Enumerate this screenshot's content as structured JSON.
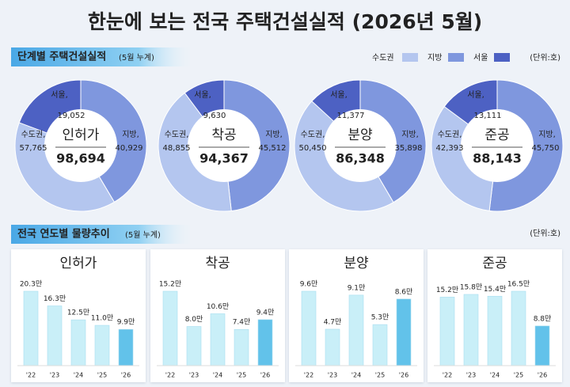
{
  "header": {
    "title": "한눈에 보는 전국 주택건설실적 (2026년 5월)"
  },
  "section1": {
    "title": "단계별 주택건설실적",
    "note": "(5월 누계)",
    "legend": {
      "items": [
        "수도권",
        "지방",
        "서울"
      ],
      "colors": [
        "#b4c6ef",
        "#7f97de",
        "#4d61c3"
      ],
      "unit": "(단위:호)"
    }
  },
  "section2": {
    "title": "전국 연도별 물량추이",
    "note": "(5월 누계)",
    "unit": "(단위:호)"
  },
  "chart_data": [
    {
      "type": "donut",
      "center_label": "인허가",
      "total": {
        "value": 98694,
        "label": "98,694"
      },
      "labels": [
        "수도권,",
        "지방,",
        "서울,"
      ],
      "values": [
        57765,
        40929,
        19052
      ],
      "value_labels": [
        "57,765",
        "40,929",
        "19,052"
      ]
    },
    {
      "type": "donut",
      "center_label": "착공",
      "total": {
        "value": 94367,
        "label": "94,367"
      },
      "labels": [
        "수도권,",
        "지방,",
        "서울,"
      ],
      "values": [
        48855,
        45512,
        9630
      ],
      "value_labels": [
        "48,855",
        "45,512",
        "9,630"
      ]
    },
    {
      "type": "donut",
      "center_label": "분양",
      "total": {
        "value": 86348,
        "label": "86,348"
      },
      "labels": [
        "수도권,",
        "지방,",
        "서울,"
      ],
      "values": [
        50450,
        35898,
        11377
      ],
      "value_labels": [
        "50,450",
        "35,898",
        "11,377"
      ]
    },
    {
      "type": "donut",
      "center_label": "준공",
      "total": {
        "value": 88143,
        "label": "88,143"
      },
      "labels": [
        "수도권,",
        "지방,",
        "서울,"
      ],
      "values": [
        42393,
        45750,
        13111
      ],
      "value_labels": [
        "42,393",
        "45,750",
        "13,111"
      ]
    },
    {
      "type": "bar",
      "title": "인허가",
      "categories": [
        "'22",
        "'23",
        "'24",
        "'25",
        "'26"
      ],
      "values": [
        20.3,
        16.3,
        12.5,
        11.0,
        9.9
      ],
      "value_labels": [
        "20.3만",
        "16.3만",
        "12.5만",
        "11.0만",
        "9.9만"
      ],
      "colors": [
        "#c9eff8",
        "#c9eff8",
        "#c9eff8",
        "#c9eff8",
        "#62c2ea"
      ]
    },
    {
      "type": "bar",
      "title": "착공",
      "categories": [
        "'22",
        "'23",
        "'24",
        "'25",
        "'26"
      ],
      "values": [
        15.2,
        8.0,
        10.6,
        7.4,
        9.4
      ],
      "value_labels": [
        "15.2만",
        "8.0만",
        "10.6만",
        "7.4만",
        "9.4만"
      ],
      "colors": [
        "#c9eff8",
        "#c9eff8",
        "#c9eff8",
        "#c9eff8",
        "#62c2ea"
      ]
    },
    {
      "type": "bar",
      "title": "분양",
      "categories": [
        "'22",
        "'23",
        "'24",
        "'25",
        "'26"
      ],
      "values": [
        9.6,
        4.7,
        9.1,
        5.3,
        8.6
      ],
      "value_labels": [
        "9.6만",
        "4.7만",
        "9.1만",
        "5.3만",
        "8.6만"
      ],
      "colors": [
        "#c9eff8",
        "#c9eff8",
        "#c9eff8",
        "#c9eff8",
        "#62c2ea"
      ]
    },
    {
      "type": "bar",
      "title": "준공",
      "categories": [
        "'22",
        "'23",
        "'24",
        "'25",
        "'26"
      ],
      "values": [
        15.2,
        15.8,
        15.4,
        16.5,
        8.8
      ],
      "value_labels": [
        "15.2만",
        "15.8만",
        "15.4만",
        "16.5만",
        "8.8만"
      ],
      "colors": [
        "#c9eff8",
        "#c9eff8",
        "#c9eff8",
        "#c9eff8",
        "#62c2ea"
      ]
    }
  ]
}
